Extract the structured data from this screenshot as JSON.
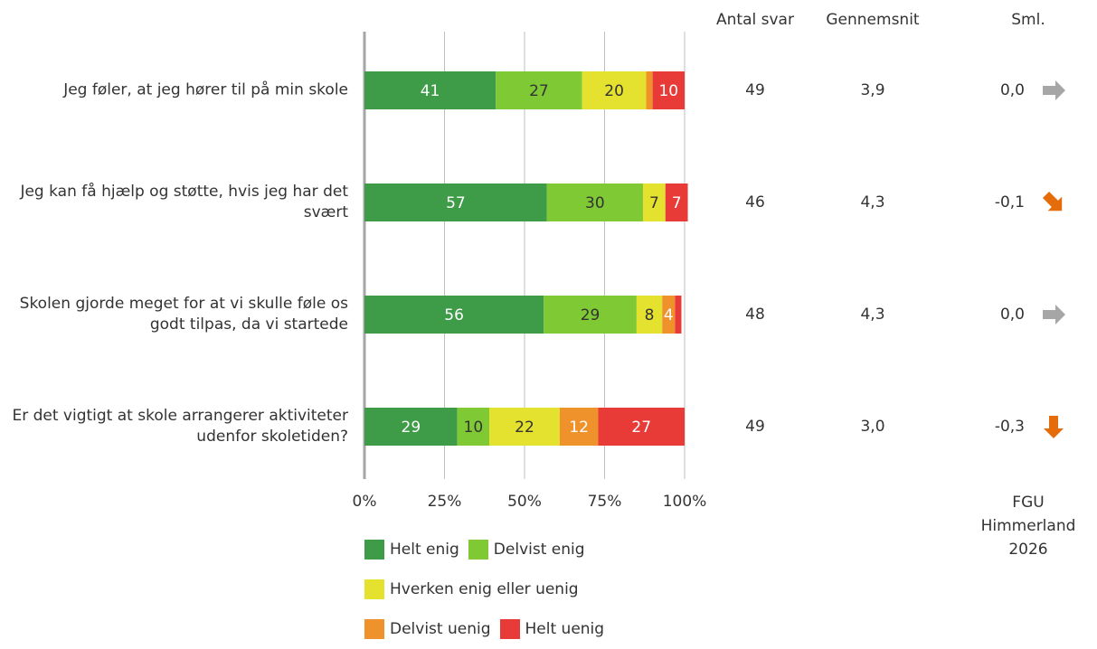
{
  "chart_data": {
    "type": "stacked_barh",
    "categories": [
      "Jeg føler, at jeg hører til på min skole",
      "Jeg kan få hjælp og støtte, hvis jeg har det svært",
      "Skolen gjorde meget for at vi skulle føle os godt tilpas, da vi startede",
      "Er det vigtigt at skole arrangerer aktiviteter udenfor skoletiden?"
    ],
    "series": [
      {
        "name": "Helt enig",
        "color": "#3e9b47",
        "label_color": "#ffffff",
        "values": [
          41,
          57,
          56,
          29
        ]
      },
      {
        "name": "Delvist enig",
        "color": "#7ec934",
        "label_color": "#333333",
        "values": [
          27,
          30,
          29,
          10
        ]
      },
      {
        "name": "Hverken enig eller uenig",
        "color": "#e4e22e",
        "label_color": "#333333",
        "values": [
          20,
          7,
          8,
          22
        ]
      },
      {
        "name": "Delvist uenig",
        "color": "#f0922b",
        "label_color": "#ffffff",
        "values": [
          2,
          0,
          4,
          12
        ]
      },
      {
        "name": "Helt uenig",
        "color": "#e83b38",
        "label_color": "#ffffff",
        "values": [
          10,
          7,
          2,
          27
        ]
      }
    ],
    "xlim": [
      0,
      100
    ],
    "xticks": [
      {
        "value": 0,
        "label": "0%"
      },
      {
        "value": 25,
        "label": "25%"
      },
      {
        "value": 50,
        "label": "50%"
      },
      {
        "value": 75,
        "label": "75%"
      },
      {
        "value": 100,
        "label": "100%"
      }
    ],
    "grid": true,
    "columns": [
      {
        "header": "Antal svar",
        "values": [
          49,
          46,
          48,
          49
        ]
      },
      {
        "header": "Gennemsnit",
        "values": [
          3.9,
          4.3,
          4.3,
          3.0
        ],
        "value_labels": [
          "3,9",
          "4,3",
          "4,3",
          "3,0"
        ]
      },
      {
        "header": "Sml.",
        "values": [
          0.0,
          -0.1,
          0.0,
          -0.3
        ],
        "value_labels": [
          "0,0",
          "-0,1",
          "0,0",
          "-0,3"
        ],
        "arrows": [
          "right",
          "down-right",
          "right",
          "down"
        ],
        "arrow_colors": [
          "#a6a6a6",
          "#e46c0a",
          "#a6a6a6",
          "#e46c0a"
        ]
      }
    ],
    "footer": "FGU Himmerland 2026"
  }
}
